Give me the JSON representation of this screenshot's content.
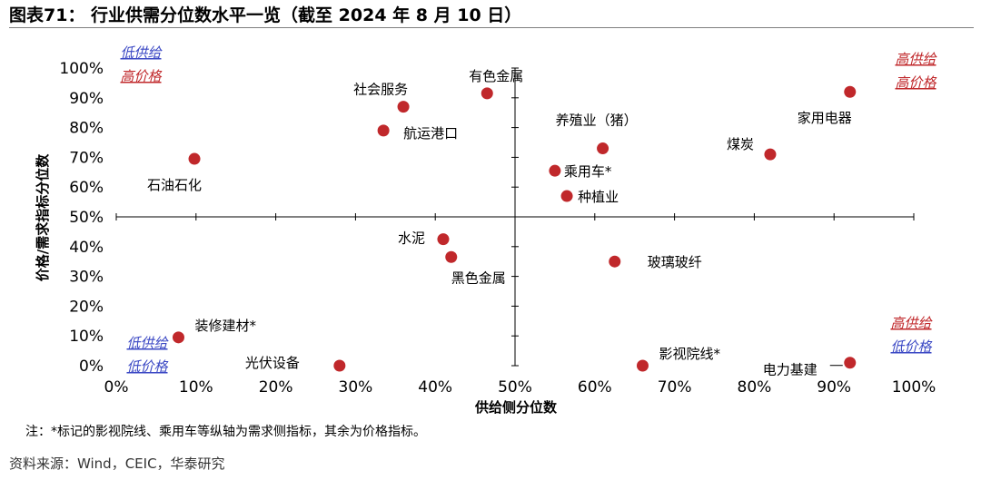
{
  "title": "图表71：  行业供需分位数水平一览（截至 2024 年 8 月 10 日）",
  "footnote": "注：*标记的影视院线、乘用车等纵轴为需求侧指标，其余为价格指标。",
  "source": "资料来源：Wind，CEIC，华泰研究",
  "colors": {
    "point": "#c0282b",
    "supply_low": "#3b48c4",
    "price_high": "#c0282b"
  },
  "quadrants": {
    "top_left": {
      "line1": "低供给",
      "line2": "高价格"
    },
    "top_right": {
      "line1": "高供给",
      "line2": "高价格"
    },
    "bottom_left": {
      "line1": "低供给",
      "line2": "低价格"
    },
    "bottom_right": {
      "line1": "高供给",
      "line2": "低价格"
    }
  },
  "chart_data": {
    "type": "scatter",
    "xlabel": "供给侧分位数",
    "ylabel": "价格/需求指标分位数",
    "xlim": [
      0,
      100
    ],
    "ylim": [
      0,
      100
    ],
    "xticks": [
      "0%",
      "10%",
      "20%",
      "30%",
      "40%",
      "50%",
      "60%",
      "70%",
      "80%",
      "90%",
      "100%"
    ],
    "yticks": [
      "0%",
      "10%",
      "20%",
      "30%",
      "40%",
      "50%",
      "60%",
      "70%",
      "80%",
      "90%",
      "100%"
    ],
    "cross_at": [
      50,
      50
    ],
    "unit": "%",
    "points": [
      {
        "label": "有色金属",
        "x": 46.5,
        "y": 91.5
      },
      {
        "label": "社会服务",
        "x": 36.0,
        "y": 87.0
      },
      {
        "label": "航运港口",
        "x": 33.5,
        "y": 79.0
      },
      {
        "label": "石油石化",
        "x": 9.8,
        "y": 69.5
      },
      {
        "label": "养殖业（猪）",
        "x": 61.0,
        "y": 73.0
      },
      {
        "label": "乘用车*",
        "x": 55.0,
        "y": 65.5
      },
      {
        "label": "种植业",
        "x": 56.5,
        "y": 57.0
      },
      {
        "label": "家用电器",
        "x": 92.0,
        "y": 92.0
      },
      {
        "label": "煤炭",
        "x": 82.0,
        "y": 71.0
      },
      {
        "label": "水泥",
        "x": 41.0,
        "y": 42.5
      },
      {
        "label": "黑色金属",
        "x": 42.0,
        "y": 36.5
      },
      {
        "label": "玻璃玻纤",
        "x": 62.5,
        "y": 35.0
      },
      {
        "label": "装修建材*",
        "x": 7.8,
        "y": 9.5
      },
      {
        "label": "光伏设备",
        "x": 28.0,
        "y": 0.0
      },
      {
        "label": "影视院线*",
        "x": 66.0,
        "y": 0.0
      },
      {
        "label": "电力基建",
        "x": 92.0,
        "y": 1.0
      }
    ]
  }
}
